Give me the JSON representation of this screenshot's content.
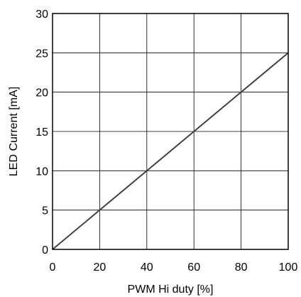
{
  "chart_data": {
    "type": "line",
    "xlabel": "PWM Hi duty [%]",
    "ylabel": "LED Current [mA]",
    "xlim": [
      0,
      100
    ],
    "ylim": [
      0,
      30
    ],
    "x_ticks": [
      0,
      20,
      40,
      60,
      80,
      100
    ],
    "y_ticks": [
      0,
      5,
      10,
      15,
      20,
      25,
      30
    ],
    "grid": true,
    "series": [
      {
        "x": [
          0,
          20,
          40,
          60,
          80,
          100
        ],
        "y": [
          0,
          5,
          10,
          15,
          20,
          25
        ]
      }
    ],
    "colors": {
      "line": "#404040",
      "grid": "#000000",
      "frame": "#000000"
    }
  }
}
